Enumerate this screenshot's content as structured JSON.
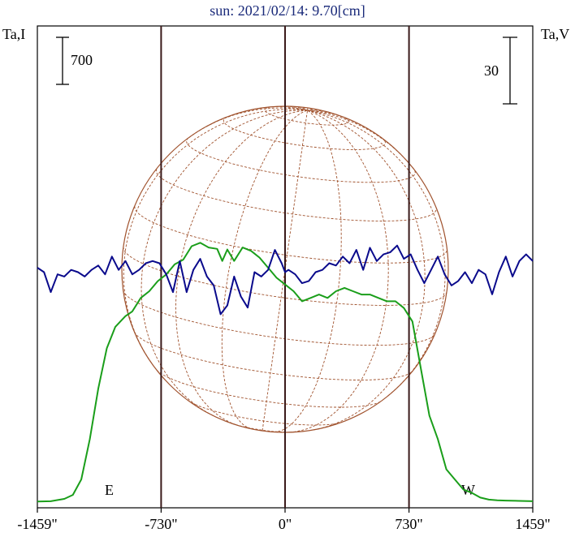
{
  "title": "sun: 2021/02/14: 9.70[cm]",
  "left_axis_label": "Ta,I",
  "right_axis_label": "Ta,V",
  "left_scale_bar": "700",
  "right_scale_bar": "30",
  "limb_labels": {
    "east": "E",
    "west": "W"
  },
  "colors": {
    "intensity": "#1a9e1a",
    "polarization": "#0a0a8c",
    "disk": "#a0522d",
    "frame": "#000000",
    "limb_lines": "#3a1a1a"
  },
  "chart_data": {
    "type": "line",
    "x_unit": "arcsec",
    "xlim": [
      -1459,
      1459
    ],
    "x_ticks": [
      "-1459\"",
      "-730\"",
      "0\"",
      "730\"",
      "1459\""
    ],
    "x_tick_values": [
      -1459,
      -730,
      0,
      730,
      1459
    ],
    "limb_positions": [
      -730,
      0,
      730
    ],
    "series": [
      {
        "name": "Ta,I",
        "x": [
          -1459,
          -1380,
          -1300,
          -1250,
          -1200,
          -1150,
          -1100,
          -1050,
          -1000,
          -970,
          -940,
          -900,
          -850,
          -800,
          -750,
          -700,
          -650,
          -600,
          -550,
          -500,
          -450,
          -400,
          -370,
          -340,
          -300,
          -250,
          -200,
          -150,
          -100,
          -50,
          0,
          50,
          100,
          150,
          200,
          250,
          300,
          350,
          400,
          450,
          500,
          550,
          600,
          650,
          700,
          750,
          800,
          850,
          900,
          950,
          1000,
          1050,
          1100,
          1150,
          1200,
          1250,
          1300,
          1380,
          1459
        ],
        "y": [
          20,
          25,
          60,
          120,
          350,
          950,
          1700,
          2300,
          2620,
          2700,
          2780,
          2850,
          3050,
          3150,
          3300,
          3400,
          3550,
          3620,
          3820,
          3870,
          3800,
          3780,
          3600,
          3770,
          3600,
          3800,
          3750,
          3650,
          3500,
          3350,
          3250,
          3150,
          3000,
          3050,
          3100,
          3050,
          3150,
          3200,
          3150,
          3100,
          3100,
          3050,
          3000,
          3000,
          2900,
          2700,
          2000,
          1300,
          950,
          500,
          350,
          200,
          150,
          80,
          50,
          40,
          35,
          30,
          25
        ]
      },
      {
        "name": "Ta,V",
        "x": [
          -1459,
          -1420,
          -1380,
          -1340,
          -1300,
          -1260,
          -1220,
          -1180,
          -1140,
          -1100,
          -1060,
          -1020,
          -980,
          -940,
          -900,
          -860,
          -820,
          -780,
          -740,
          -700,
          -660,
          -620,
          -580,
          -540,
          -500,
          -460,
          -420,
          -380,
          -340,
          -300,
          -260,
          -220,
          -180,
          -140,
          -100,
          -60,
          -20,
          0,
          20,
          60,
          100,
          140,
          180,
          220,
          260,
          300,
          340,
          380,
          420,
          460,
          500,
          540,
          580,
          620,
          660,
          700,
          740,
          780,
          820,
          860,
          900,
          940,
          980,
          1020,
          1060,
          1100,
          1140,
          1180,
          1220,
          1260,
          1300,
          1340,
          1380,
          1420,
          1459
        ],
        "y": [
          0,
          -2,
          -11,
          -3,
          -4,
          -1,
          -2,
          -4,
          -1,
          1,
          -3,
          5,
          -1,
          3,
          -3,
          -1,
          2,
          3,
          2,
          -3,
          -11,
          3,
          -11,
          -1,
          4,
          -4,
          -8,
          -21,
          -17,
          -4,
          -13,
          -18,
          -2,
          -4,
          -1,
          8,
          2,
          -2,
          -1,
          -3,
          -7,
          -6,
          -2,
          -1,
          2,
          1,
          5,
          2,
          8,
          -1,
          9,
          3,
          6,
          7,
          10,
          4,
          6,
          -1,
          -7,
          -1,
          5,
          -3,
          -8,
          -6,
          -2,
          -7,
          -1,
          -3,
          -12,
          -2,
          5,
          -4,
          3,
          6,
          3
        ]
      }
    ],
    "y_scale_bars": {
      "Ta,I": 700,
      "Ta,V": 30
    }
  }
}
